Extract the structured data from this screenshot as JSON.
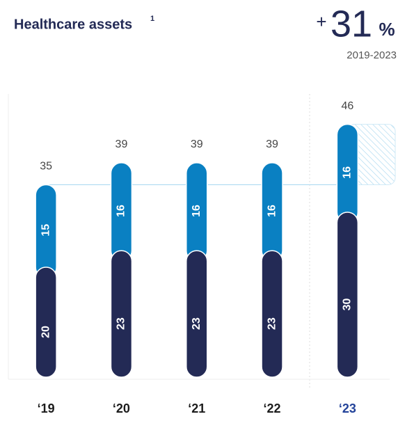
{
  "chart_data": {
    "type": "stacked_bar",
    "title": "Healthcare assets",
    "title_footnote": "1",
    "change_sign": "+",
    "change_value": "31",
    "change_unit": "%",
    "change_period": "2019-2023",
    "categories": [
      "‘19",
      "‘20",
      "‘21",
      "‘22",
      "‘23"
    ],
    "category_colors": [
      "#1c1c1c",
      "#1c1c1c",
      "#1c1c1c",
      "#1c1c1c",
      "#23439a"
    ],
    "series": [
      {
        "color": "#232a55",
        "values": [
          20,
          23,
          23,
          23,
          30
        ]
      },
      {
        "color": "#0a80c2",
        "values": [
          15,
          16,
          16,
          16,
          16
        ]
      }
    ],
    "totals": [
      35,
      39,
      39,
      39,
      46
    ],
    "ylim": [
      0,
      50
    ]
  }
}
